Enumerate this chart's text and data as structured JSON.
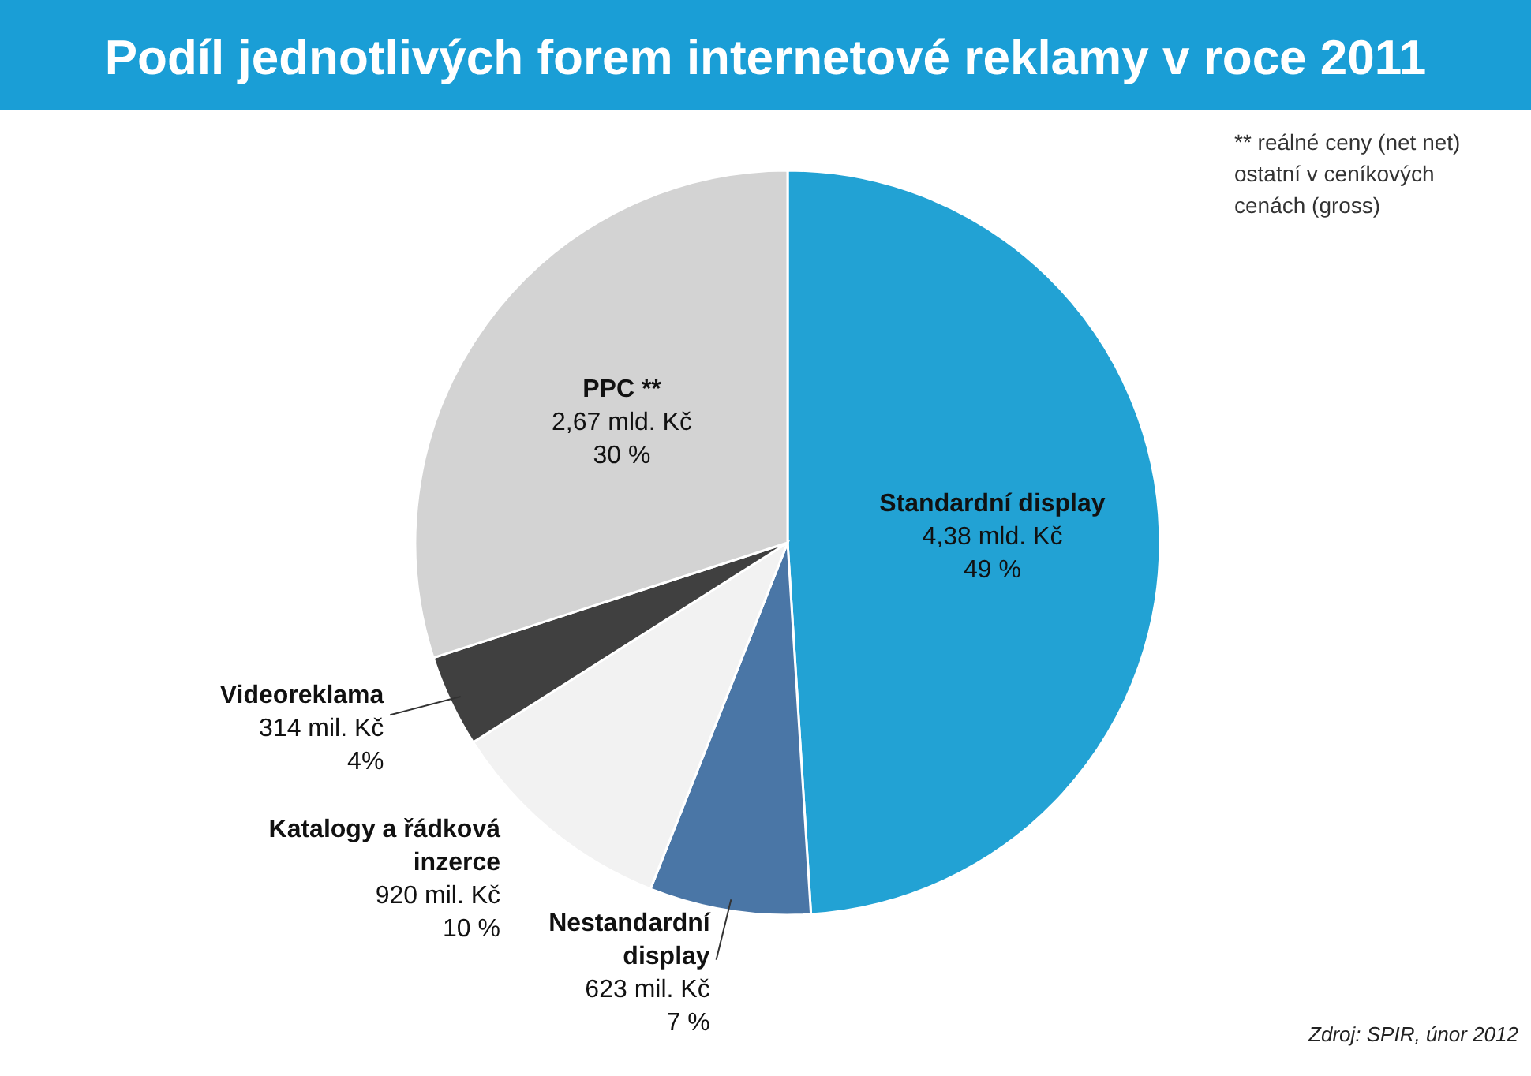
{
  "chart_data": {
    "type": "pie",
    "title": "Podíl jednotlivých forem internetové reklamy v roce 2011",
    "categories": [
      "Standardní display",
      "Nestandardní display",
      "Katalogy a řádková inzerce",
      "Videoreklama",
      "PPC **"
    ],
    "values": [
      49,
      7,
      10,
      4,
      30
    ],
    "colors": [
      "#22a2d4",
      "#4a76a6",
      "#f2f2f2",
      "#404040",
      "#d3d3d3"
    ],
    "value_labels": [
      "4,38 mld. Kč\n49 %",
      "623 mil. Kč\n7 %",
      "920 mil. Kč\n10 %",
      "314 mil. Kč\n4%",
      "2,67 mld. Kč\n30 %"
    ],
    "annotations": [
      "** reálné ceny (net net)\nostatní  v ceníkových\ncenách (gross)",
      "Zdroj: SPIR, únor 2012"
    ]
  }
}
